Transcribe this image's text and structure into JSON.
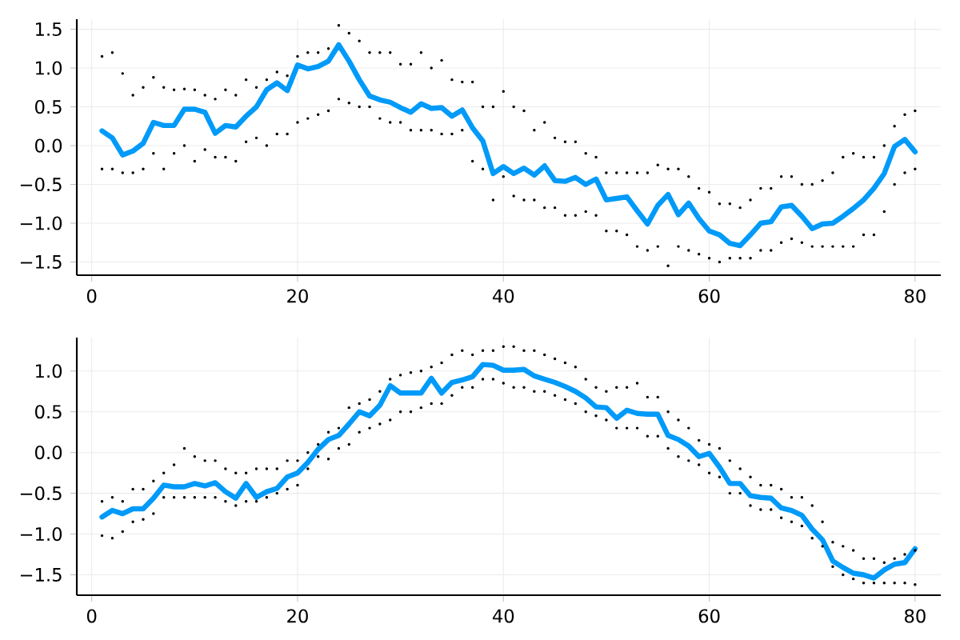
{
  "chart_data": [
    {
      "type": "line",
      "x": [
        1,
        2,
        3,
        4,
        5,
        6,
        7,
        8,
        9,
        10,
        11,
        12,
        13,
        14,
        15,
        16,
        17,
        18,
        19,
        20,
        21,
        22,
        23,
        24,
        25,
        26,
        27,
        28,
        29,
        30,
        31,
        32,
        33,
        34,
        35,
        36,
        37,
        38,
        39,
        40,
        41,
        42,
        43,
        44,
        45,
        46,
        47,
        48,
        49,
        50,
        51,
        52,
        53,
        54,
        55,
        56,
        57,
        58,
        59,
        60,
        61,
        62,
        63,
        64,
        65,
        66,
        67,
        68,
        69,
        70,
        71,
        72,
        73,
        74,
        75,
        76,
        77,
        78,
        79,
        80
      ],
      "xlim": [
        -1.45,
        82.5
      ],
      "ylim": [
        -1.67,
        1.63
      ],
      "xticks": [
        0,
        20,
        40,
        60,
        80
      ],
      "yticks": [
        {
          "value": -1.5,
          "label": "−1.5"
        },
        {
          "value": -1.0,
          "label": "−1.0"
        },
        {
          "value": -0.5,
          "label": "−0.5"
        },
        {
          "value": 0.0,
          "label": "0.0"
        },
        {
          "value": 0.5,
          "label": "0.5"
        },
        {
          "value": 1.0,
          "label": "1.0"
        },
        {
          "value": 1.5,
          "label": "1.5"
        }
      ],
      "grid": true,
      "series": [
        {
          "type": "scatter",
          "marker": "circle",
          "color": "#000000",
          "x": [
            1,
            2,
            3,
            4,
            5,
            6,
            7,
            8,
            9,
            10,
            11,
            12,
            13,
            14,
            15,
            16,
            17,
            18,
            19,
            20,
            21,
            22,
            23,
            24,
            25,
            26,
            27,
            28,
            29,
            30,
            31,
            32,
            33,
            34,
            35,
            36,
            37,
            38,
            39,
            40,
            41,
            42,
            43,
            44,
            45,
            46,
            47,
            48,
            49,
            50,
            51,
            52,
            53,
            54,
            55,
            56,
            57,
            58,
            59,
            60,
            61,
            62,
            63,
            64,
            65,
            66,
            67,
            68,
            69,
            70,
            71,
            72,
            73,
            74,
            75,
            76,
            77,
            78,
            79,
            80,
            1,
            2,
            3,
            4,
            5,
            6,
            7,
            8,
            9,
            10,
            11,
            12,
            13,
            14,
            15,
            16,
            17,
            18,
            19,
            20,
            21,
            22,
            23,
            24,
            25,
            26,
            27,
            28,
            29,
            30,
            31,
            32,
            33,
            34,
            35,
            36,
            37,
            38,
            39,
            40,
            41,
            42,
            43,
            44,
            45,
            46,
            47,
            48,
            49,
            50,
            51,
            52,
            53,
            54,
            55,
            56,
            57,
            58,
            59,
            60,
            61,
            62,
            63,
            64,
            65,
            66,
            67,
            68,
            69,
            70,
            71,
            72,
            73,
            74,
            75,
            76,
            77,
            78,
            79,
            80
          ],
          "values": [
            1.15,
            1.2,
            0.93,
            0.65,
            0.75,
            0.88,
            0.75,
            0.72,
            0.73,
            0.72,
            0.65,
            0.6,
            0.72,
            0.65,
            0.85,
            0.75,
            0.85,
            0.95,
            0.9,
            1.15,
            1.2,
            1.2,
            1.25,
            1.55,
            1.45,
            1.35,
            1.2,
            1.2,
            1.2,
            1.05,
            1.05,
            1.2,
            1.0,
            1.1,
            0.85,
            0.82,
            0.82,
            0.5,
            0.5,
            0.7,
            0.5,
            0.45,
            0.2,
            0.3,
            0.1,
            0.05,
            0.05,
            -0.1,
            -0.15,
            -0.35,
            -0.35,
            -0.35,
            -0.35,
            -0.35,
            -0.25,
            -0.3,
            -0.3,
            -0.4,
            -0.55,
            -0.6,
            -0.75,
            -0.75,
            -0.8,
            -0.7,
            -0.55,
            -0.55,
            -0.4,
            -0.4,
            -0.5,
            -0.5,
            -0.45,
            -0.35,
            -0.15,
            -0.1,
            -0.15,
            -0.15,
            0.0,
            0.25,
            0.4,
            0.45,
            -0.3,
            -0.3,
            -0.35,
            -0.35,
            -0.3,
            -0.1,
            -0.3,
            -0.1,
            0.0,
            -0.2,
            -0.05,
            -0.15,
            -0.15,
            -0.2,
            0.05,
            0.1,
            0.0,
            0.15,
            0.15,
            0.3,
            0.35,
            0.4,
            0.45,
            0.6,
            0.55,
            0.5,
            0.5,
            0.35,
            0.3,
            0.3,
            0.2,
            0.2,
            0.2,
            0.15,
            0.15,
            0.2,
            -0.2,
            -0.3,
            -0.7,
            -0.4,
            -0.65,
            -0.7,
            -0.7,
            -0.8,
            -0.8,
            -0.9,
            -0.9,
            -0.85,
            -0.9,
            -1.1,
            -1.1,
            -1.15,
            -1.3,
            -1.35,
            -1.3,
            -1.55,
            -1.3,
            -1.35,
            -1.4,
            -1.45,
            -1.5,
            -1.45,
            -1.45,
            -1.45,
            -1.35,
            -1.35,
            -1.25,
            -1.2,
            -1.25,
            -1.3,
            -1.3,
            -1.3,
            -1.3,
            -1.3,
            -1.15,
            -1.15,
            -0.85,
            -0.5,
            -0.35,
            -0.3
          ]
        },
        {
          "color": "#009af9",
          "values": [
            0.19,
            0.1,
            -0.12,
            -0.07,
            0.03,
            0.3,
            0.26,
            0.26,
            0.47,
            0.47,
            0.43,
            0.16,
            0.26,
            0.24,
            0.38,
            0.5,
            0.72,
            0.81,
            0.71,
            1.04,
            0.99,
            1.02,
            1.09,
            1.3,
            1.09,
            0.85,
            0.64,
            0.59,
            0.56,
            0.49,
            0.43,
            0.54,
            0.48,
            0.49,
            0.38,
            0.46,
            0.23,
            0.06,
            -0.36,
            -0.27,
            -0.36,
            -0.29,
            -0.38,
            -0.26,
            -0.45,
            -0.46,
            -0.41,
            -0.5,
            -0.43,
            -0.7,
            -0.68,
            -0.66,
            -0.84,
            -1.01,
            -0.77,
            -0.63,
            -0.89,
            -0.74,
            -0.94,
            -1.1,
            -1.15,
            -1.26,
            -1.29,
            -1.15,
            -1.0,
            -0.98,
            -0.79,
            -0.77,
            -0.91,
            -1.07,
            -1.01,
            -1.0,
            -0.91,
            -0.81,
            -0.7,
            -0.55,
            -0.36,
            -0.01,
            0.08,
            -0.08
          ]
        }
      ]
    },
    {
      "type": "line",
      "x": [
        1,
        2,
        3,
        4,
        5,
        6,
        7,
        8,
        9,
        10,
        11,
        12,
        13,
        14,
        15,
        16,
        17,
        18,
        19,
        20,
        21,
        22,
        23,
        24,
        25,
        26,
        27,
        28,
        29,
        30,
        31,
        32,
        33,
        34,
        35,
        36,
        37,
        38,
        39,
        40,
        41,
        42,
        43,
        44,
        45,
        46,
        47,
        48,
        49,
        50,
        51,
        52,
        53,
        54,
        55,
        56,
        57,
        58,
        59,
        60,
        61,
        62,
        63,
        64,
        65,
        66,
        67,
        68,
        69,
        70,
        71,
        72,
        73,
        74,
        75,
        76,
        77,
        78,
        79,
        80
      ],
      "xlim": [
        -1.45,
        82.5
      ],
      "ylim": [
        -1.75,
        1.41
      ],
      "xticks": [
        0,
        20,
        40,
        60,
        80
      ],
      "yticks": [
        {
          "value": -1.5,
          "label": "−1.5"
        },
        {
          "value": -1.0,
          "label": "−1.0"
        },
        {
          "value": -0.5,
          "label": "−0.5"
        },
        {
          "value": 0.0,
          "label": "0.0"
        },
        {
          "value": 0.5,
          "label": "0.5"
        },
        {
          "value": 1.0,
          "label": "1.0"
        }
      ],
      "grid": true,
      "series": [
        {
          "type": "scatter",
          "marker": "circle",
          "color": "#000000",
          "x": [
            1,
            2,
            3,
            4,
            5,
            6,
            7,
            8,
            9,
            10,
            11,
            12,
            13,
            14,
            15,
            16,
            17,
            18,
            19,
            20,
            21,
            22,
            23,
            24,
            25,
            26,
            27,
            28,
            29,
            30,
            31,
            32,
            33,
            34,
            35,
            36,
            37,
            38,
            39,
            40,
            41,
            42,
            43,
            44,
            45,
            46,
            47,
            48,
            49,
            50,
            51,
            52,
            53,
            54,
            55,
            56,
            57,
            58,
            59,
            60,
            61,
            62,
            63,
            64,
            65,
            66,
            67,
            68,
            69,
            70,
            71,
            72,
            73,
            74,
            75,
            76,
            77,
            78,
            79,
            80,
            1,
            2,
            3,
            4,
            5,
            6,
            7,
            8,
            9,
            10,
            11,
            12,
            13,
            14,
            15,
            16,
            17,
            18,
            19,
            20,
            21,
            22,
            23,
            24,
            25,
            26,
            27,
            28,
            29,
            30,
            31,
            32,
            33,
            34,
            35,
            36,
            37,
            38,
            39,
            40,
            41,
            42,
            43,
            44,
            45,
            46,
            47,
            48,
            49,
            50,
            51,
            52,
            53,
            54,
            55,
            56,
            57,
            58,
            59,
            60,
            61,
            62,
            63,
            64,
            65,
            66,
            67,
            68,
            69,
            70,
            71,
            72,
            73,
            74,
            75,
            76,
            77,
            78,
            79,
            80
          ],
          "values": [
            -0.6,
            -0.55,
            -0.6,
            -0.45,
            -0.45,
            -0.35,
            -0.25,
            -0.15,
            0.05,
            -0.05,
            -0.1,
            -0.1,
            -0.2,
            -0.25,
            -0.25,
            -0.2,
            -0.2,
            -0.2,
            -0.1,
            -0.1,
            0.0,
            0.1,
            0.25,
            0.3,
            0.55,
            0.6,
            0.65,
            0.75,
            0.9,
            0.95,
            0.98,
            1.0,
            1.05,
            1.1,
            1.2,
            1.25,
            1.2,
            1.25,
            1.25,
            1.3,
            1.3,
            1.25,
            1.25,
            1.2,
            1.15,
            1.1,
            1.05,
            0.9,
            0.8,
            0.75,
            0.8,
            0.8,
            0.85,
            0.68,
            0.68,
            0.5,
            0.4,
            0.3,
            0.15,
            0.1,
            0.05,
            -0.1,
            -0.2,
            -0.3,
            -0.4,
            -0.4,
            -0.45,
            -0.55,
            -0.55,
            -0.65,
            -0.85,
            -1.1,
            -1.15,
            -1.2,
            -1.3,
            -1.3,
            -1.35,
            -1.3,
            -1.25,
            -1.2,
            -1.02,
            -1.05,
            -0.97,
            -0.85,
            -0.82,
            -0.75,
            -0.55,
            -0.55,
            -0.55,
            -0.55,
            -0.55,
            -0.55,
            -0.6,
            -0.65,
            -0.6,
            -0.6,
            -0.55,
            -0.5,
            -0.45,
            -0.4,
            -0.2,
            -0.05,
            -0.08,
            0.05,
            0.1,
            0.25,
            0.3,
            0.35,
            0.4,
            0.5,
            0.5,
            0.55,
            0.6,
            0.6,
            0.7,
            0.8,
            0.8,
            0.9,
            0.9,
            0.85,
            0.8,
            0.8,
            0.75,
            0.75,
            0.7,
            0.65,
            0.6,
            0.5,
            0.45,
            0.4,
            0.3,
            0.3,
            0.3,
            0.2,
            0.2,
            0.05,
            -0.05,
            -0.1,
            -0.15,
            -0.25,
            -0.3,
            -0.5,
            -0.5,
            -0.65,
            -0.7,
            -0.7,
            -0.8,
            -0.85,
            -0.9,
            -1.05,
            -1.15,
            -1.4,
            -1.5,
            -1.55,
            -1.6,
            -1.6,
            -1.6,
            -1.6,
            -1.6,
            -1.62
          ]
        },
        {
          "color": "#009af9",
          "values": [
            -0.79,
            -0.71,
            -0.75,
            -0.69,
            -0.69,
            -0.56,
            -0.4,
            -0.42,
            -0.42,
            -0.38,
            -0.41,
            -0.37,
            -0.48,
            -0.56,
            -0.38,
            -0.55,
            -0.48,
            -0.44,
            -0.3,
            -0.25,
            -0.12,
            0.04,
            0.16,
            0.21,
            0.35,
            0.5,
            0.45,
            0.58,
            0.82,
            0.73,
            0.73,
            0.73,
            0.91,
            0.73,
            0.86,
            0.89,
            0.93,
            1.08,
            1.07,
            1.01,
            1.01,
            1.02,
            0.94,
            0.9,
            0.86,
            0.81,
            0.75,
            0.67,
            0.56,
            0.55,
            0.42,
            0.52,
            0.48,
            0.47,
            0.47,
            0.21,
            0.16,
            0.08,
            -0.05,
            -0.01,
            -0.18,
            -0.38,
            -0.38,
            -0.53,
            -0.55,
            -0.56,
            -0.68,
            -0.71,
            -0.77,
            -0.94,
            -1.07,
            -1.33,
            -1.41,
            -1.48,
            -1.5,
            -1.54,
            -1.44,
            -1.37,
            -1.35,
            -1.18
          ]
        }
      ]
    }
  ]
}
